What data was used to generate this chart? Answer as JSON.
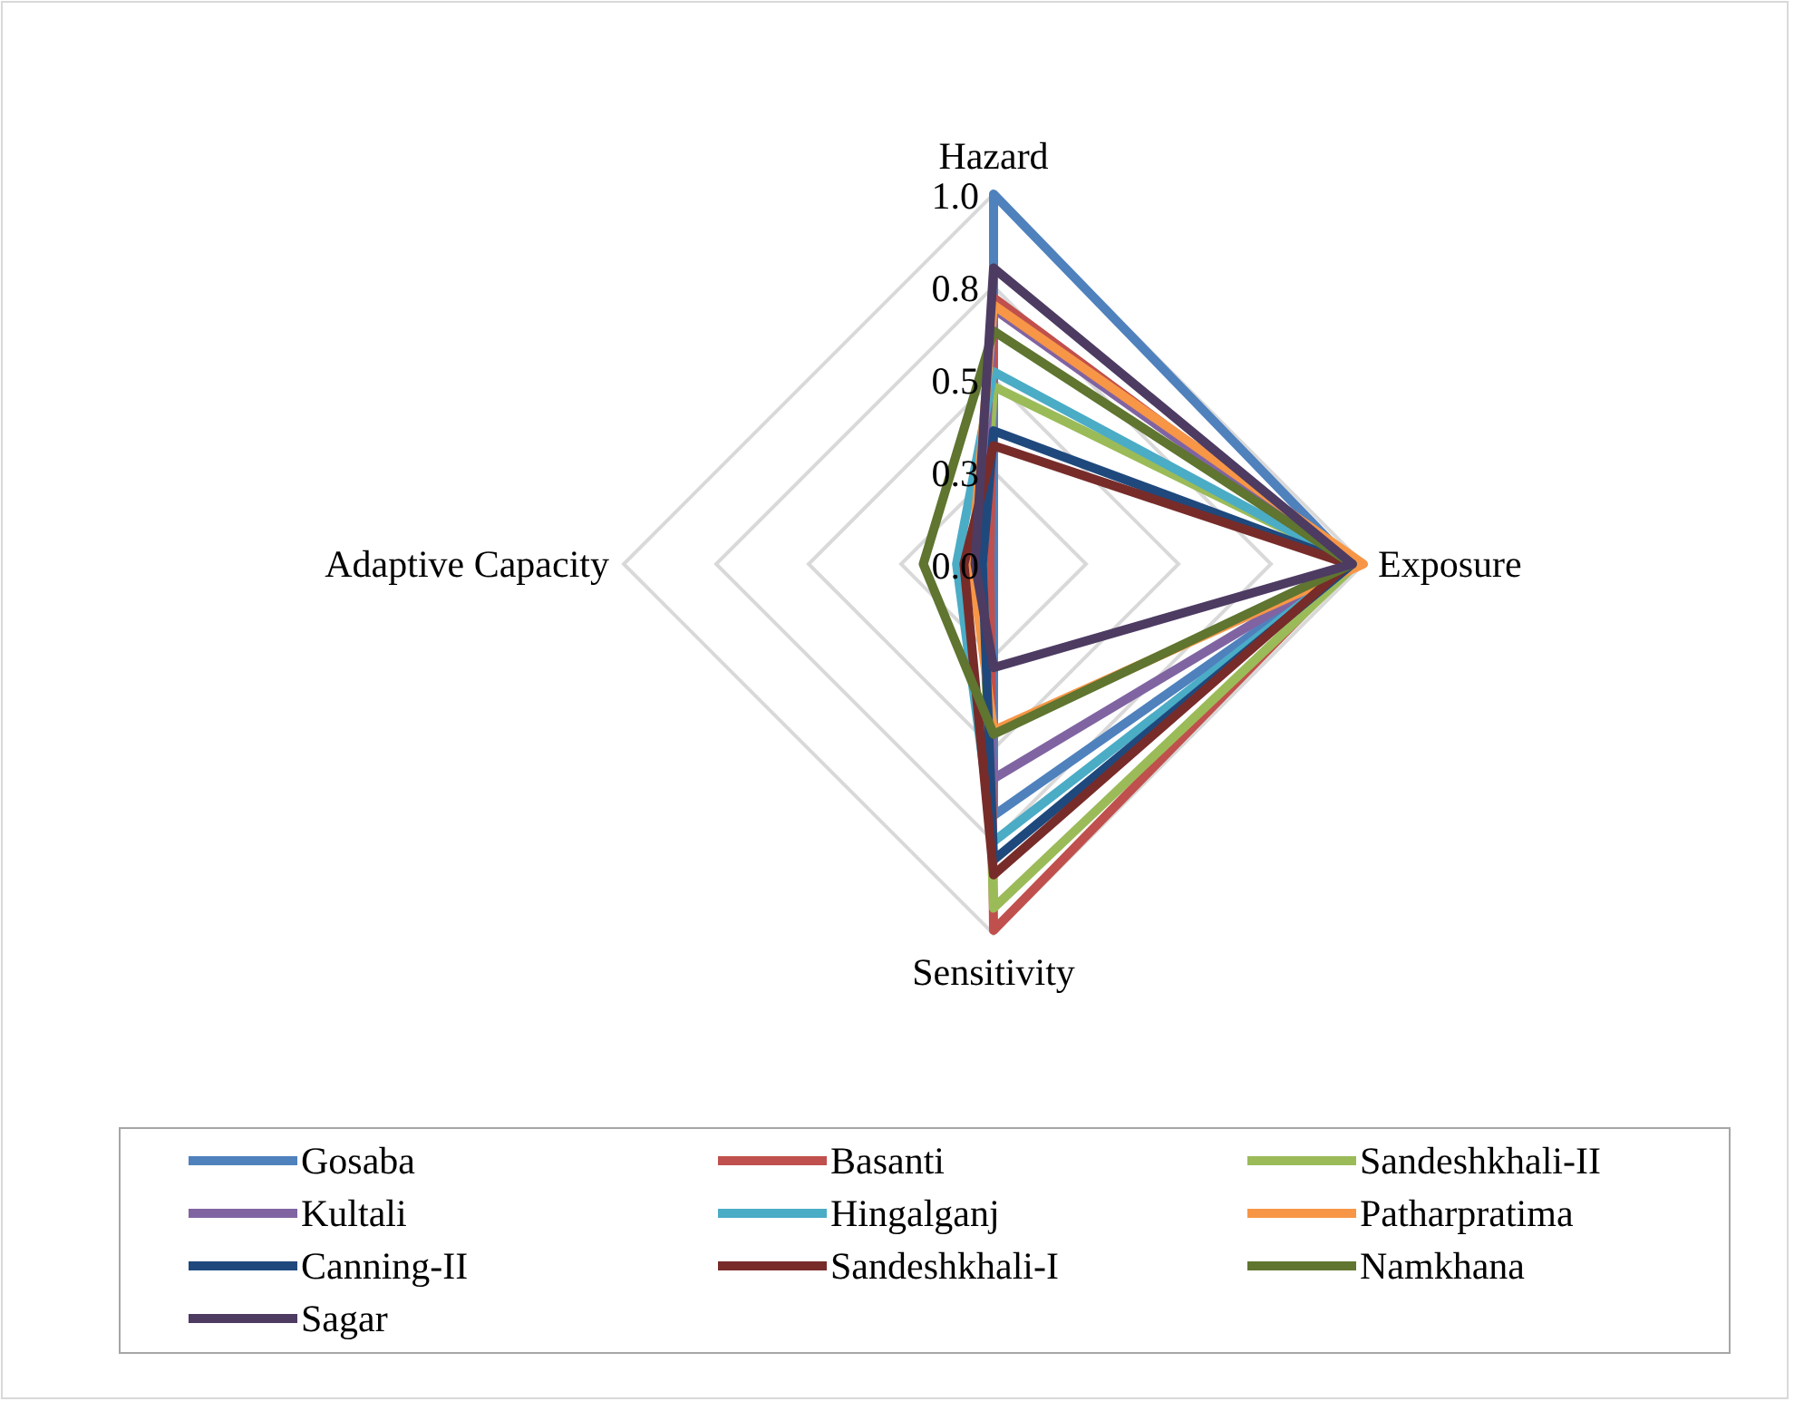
{
  "chart_data": {
    "type": "radar",
    "categories": [
      "Hazard",
      "Exposure",
      "Sensitivity",
      "Adaptive Capacity"
    ],
    "ylim": [
      0,
      1
    ],
    "yticks": [
      {
        "value": 0,
        "label": "0.0"
      },
      {
        "value": 0.25,
        "label": "0.3"
      },
      0.5,
      {
        "value": 0.75,
        "label": "0.8"
      },
      {
        "value": 1,
        "label": "1.0"
      }
    ],
    "grid": true,
    "legend": "bottom",
    "marker": "none",
    "series": [
      {
        "name": "Gosaba",
        "color": "#4f81bd",
        "values": [
          1.0,
          0.97,
          0.68,
          0.0
        ]
      },
      {
        "name": "Basanti",
        "color": "#c0504d",
        "values": [
          0.72,
          0.97,
          0.99,
          0.01
        ]
      },
      {
        "name": "Sandeshkhali-II",
        "color": "#9bbb59",
        "values": [
          0.48,
          0.98,
          0.93,
          0.03
        ]
      },
      {
        "name": "Kultali",
        "color": "#8064a2",
        "values": [
          0.69,
          0.97,
          0.58,
          0.04
        ]
      },
      {
        "name": "Hingalganj",
        "color": "#4bacc6",
        "values": [
          0.52,
          0.97,
          0.75,
          0.1
        ]
      },
      {
        "name": "Patharpratima",
        "color": "#f79646",
        "values": [
          0.7,
          1.0,
          0.45,
          0.06
        ]
      },
      {
        "name": "Canning-II",
        "color": "#1f497d",
        "values": [
          0.36,
          0.97,
          0.8,
          0.03
        ]
      },
      {
        "name": "Sandeshkhali-I",
        "color": "#772c2a",
        "values": [
          0.32,
          0.96,
          0.84,
          0.08
        ]
      },
      {
        "name": "Namkhana",
        "color": "#5f7530",
        "values": [
          0.63,
          0.97,
          0.46,
          0.19
        ]
      },
      {
        "name": "Sagar",
        "color": "#4d3b62",
        "values": [
          0.8,
          0.97,
          0.28,
          0.05
        ]
      }
    ]
  }
}
